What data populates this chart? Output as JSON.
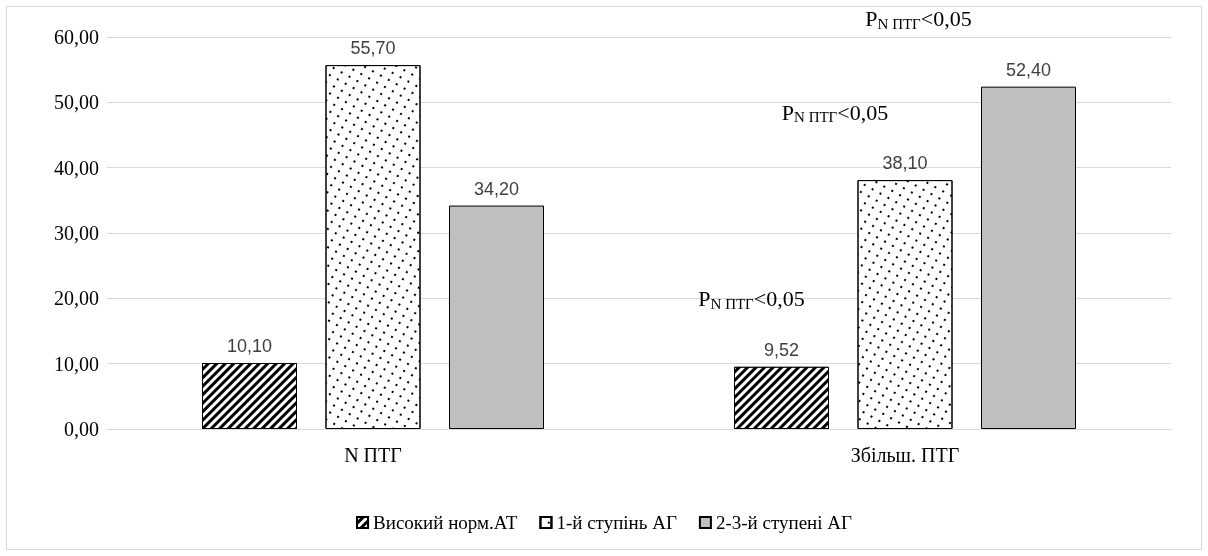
{
  "chart_data": {
    "type": "bar",
    "categories": [
      "N ПТГ",
      "Збільш. ПТГ"
    ],
    "series": [
      {
        "name": "Високий норм.АТ",
        "color": "#000000",
        "values": [
          10.1,
          9.52
        ],
        "value_labels": [
          "10,10",
          "9,52"
        ]
      },
      {
        "name": "1-й ступінь АГ",
        "color": "#ffffff",
        "values": [
          55.7,
          38.1
        ],
        "value_labels": [
          "55,70",
          "38,10"
        ]
      },
      {
        "name": "2-3-й ступені АГ",
        "color": "#bfbfbf",
        "values": [
          34.2,
          52.4
        ],
        "value_labels": [
          "34,20",
          "52,40"
        ]
      }
    ],
    "ylim": [
      0,
      60
    ],
    "yticks": [
      {
        "value": 0,
        "label": "0,00"
      },
      {
        "value": 10,
        "label": "10,00"
      },
      {
        "value": 20,
        "label": "20,00"
      },
      {
        "value": 30,
        "label": "30,00"
      },
      {
        "value": 40,
        "label": "40,00"
      },
      {
        "value": 50,
        "label": "50,00"
      },
      {
        "value": 60,
        "label": "60,00"
      }
    ],
    "annotations": [
      "P$_{N ПТГ}$<0,05",
      "P$_{N ПТГ}$<0,05",
      "P$_{N ПТГ}$<0,05"
    ],
    "grid": "y",
    "legend": "bottom"
  }
}
